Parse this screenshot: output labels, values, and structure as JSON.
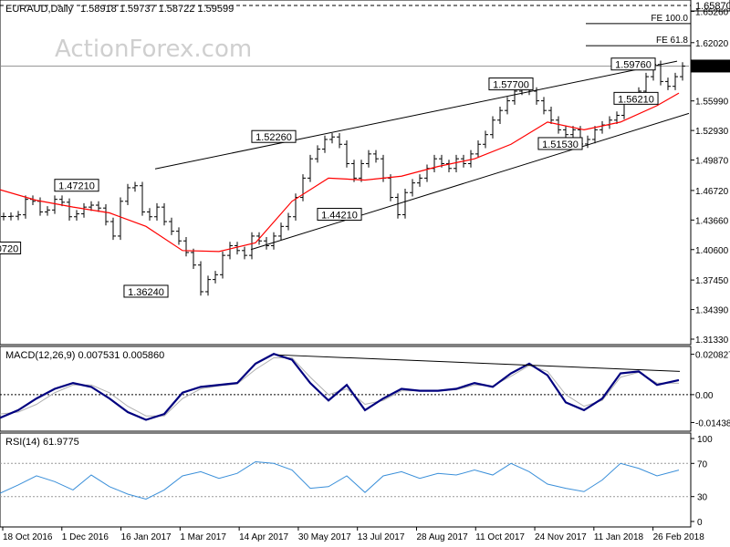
{
  "header": {
    "symbol": "EURAUD,Daily",
    "ohlc": "1.58918 1.59737 1.58722 1.59599",
    "watermark": "ActionForex.com"
  },
  "colors": {
    "price": "#000000",
    "ma": "#ff0000",
    "macd": "#00007f",
    "signal": "#b0b0b0",
    "rsi": "#3a8fd9",
    "current_price_tag": "#000000"
  },
  "chart_data": [
    {
      "type": "line",
      "panel": "price",
      "ylim": [
        1.3133,
        1.6587
      ],
      "y_ticks": [
        "1.65870",
        "1.65260",
        "1.62020",
        "1.59599",
        "1.55990",
        "1.52930",
        "1.49870",
        "1.46720",
        "1.43660",
        "1.40600",
        "1.37450",
        "1.34390",
        "1.31330"
      ],
      "x_ticks": [
        "18 Oct 2016",
        "1 Dec 2016",
        "16 Jan 2017",
        "1 Mar 2017",
        "14 Apr 2017",
        "30 May 2017",
        "13 Jul 2017",
        "28 Aug 2017",
        "11 Oct 2017",
        "24 Nov 2017",
        "11 Jan 2018",
        "26 Feb 2018"
      ],
      "current_price": "1.59599",
      "price_series": {
        "x": [
          0,
          8,
          16,
          24,
          32,
          40,
          48,
          56,
          64,
          72,
          80,
          88,
          96,
          104,
          112,
          120,
          128,
          136,
          144,
          152,
          160,
          168,
          176,
          184,
          192,
          200,
          208,
          216,
          224,
          232,
          240,
          248,
          256,
          264,
          272,
          280,
          288,
          296,
          304,
          312,
          320,
          328,
          336,
          344,
          352,
          360,
          368,
          376,
          384,
          392,
          400,
          408,
          416,
          424,
          432,
          440,
          448,
          456,
          464,
          472,
          480,
          488,
          496,
          504,
          512,
          520,
          528,
          536,
          544,
          552,
          560,
          568,
          576,
          584,
          592,
          600,
          608,
          616,
          624,
          632,
          640,
          648,
          656,
          664,
          672,
          680,
          688,
          696,
          704,
          712,
          720,
          728,
          736,
          744
        ],
        "close": [
          1.4402,
          1.4405,
          1.442,
          1.458,
          1.456,
          1.445,
          1.447,
          1.458,
          1.455,
          1.44,
          1.443,
          1.45,
          1.452,
          1.449,
          1.435,
          1.42,
          1.456,
          1.47,
          1.4721,
          1.445,
          1.44,
          1.45,
          1.435,
          1.425,
          1.415,
          1.403,
          1.39,
          1.3624,
          1.375,
          1.38,
          1.4,
          1.41,
          1.405,
          1.4,
          1.42,
          1.415,
          1.41,
          1.42,
          1.43,
          1.44,
          1.46,
          1.48,
          1.5,
          1.51,
          1.52,
          1.5226,
          1.515,
          1.495,
          1.48,
          1.495,
          1.505,
          1.5,
          1.48,
          1.46,
          1.4421,
          1.465,
          1.475,
          1.48,
          1.49,
          1.5,
          1.495,
          1.49,
          1.5,
          1.495,
          1.505,
          1.515,
          1.525,
          1.54,
          1.55,
          1.56,
          1.57,
          1.577,
          1.57,
          1.56,
          1.55,
          1.54,
          1.53,
          1.525,
          1.53,
          1.5153,
          1.52,
          1.53,
          1.535,
          1.54,
          1.545,
          1.56,
          1.5621,
          1.57,
          1.585,
          1.5976,
          1.58,
          1.575,
          1.585,
          1.596
        ]
      },
      "ma_series": {
        "x": [
          0,
          40,
          80,
          120,
          160,
          200,
          240,
          280,
          320,
          360,
          400,
          440,
          480,
          520,
          560,
          600,
          640,
          680,
          720,
          744
        ],
        "values": [
          1.468,
          1.457,
          1.45,
          1.444,
          1.43,
          1.405,
          1.404,
          1.413,
          1.456,
          1.48,
          1.478,
          1.482,
          1.492,
          1.5,
          1.515,
          1.538,
          1.53,
          1.538,
          1.555,
          1.568
        ]
      },
      "trendlines": [
        {
          "x": [
            170,
            742
          ],
          "y": [
            1.4895,
            1.601
          ]
        },
        {
          "x": [
            275,
            755
          ],
          "y": [
            1.406,
            1.547
          ]
        },
        {
          "x": [
            0,
            755
          ],
          "y": [
            1.596,
            1.596
          ]
        }
      ],
      "fib_levels": [
        {
          "label": "FE 100.0",
          "value": "1.64000",
          "y": 1.64
        },
        {
          "label": "FE 61.8",
          "value": "1.61700",
          "y": 1.617
        }
      ],
      "annotations": [
        {
          "text": "1.47210",
          "x": 84,
          "y": 1.4721
        },
        {
          "text": "0720",
          "x": 8,
          "y": 1.4072
        },
        {
          "text": "1.36240",
          "x": 160,
          "y": 1.3624
        },
        {
          "text": "1.52260",
          "x": 300,
          "y": 1.5226
        },
        {
          "text": "1.44210",
          "x": 372,
          "y": 1.4421
        },
        {
          "text": "1.57700",
          "x": 560,
          "y": 1.577
        },
        {
          "text": "1.51530",
          "x": 614,
          "y": 1.5153
        },
        {
          "text": "1.59760",
          "x": 694,
          "y": 1.5976
        },
        {
          "text": "1.56210",
          "x": 697,
          "y": 1.5621
        }
      ]
    },
    {
      "type": "line",
      "panel": "macd",
      "title": "MACD(12,26,9) 0.007531 0.005860",
      "ylim": [
        -0.017,
        0.023
      ],
      "y_ticks": [
        "0.020827",
        "0.00",
        "-0.014386"
      ],
      "macd_series": {
        "x": [
          0,
          20,
          40,
          60,
          80,
          100,
          120,
          140,
          160,
          180,
          200,
          220,
          240,
          260,
          280,
          300,
          320,
          340,
          360,
          380,
          400,
          420,
          440,
          460,
          480,
          500,
          520,
          540,
          560,
          580,
          600,
          620,
          640,
          660,
          680,
          700,
          720,
          744
        ],
        "values": [
          -0.012,
          -0.008,
          -0.002,
          0.003,
          0.006,
          0.004,
          -0.002,
          -0.009,
          -0.013,
          -0.01,
          0.001,
          0.004,
          0.005,
          0.006,
          0.016,
          0.021,
          0.018,
          0.006,
          -0.003,
          0.005,
          -0.008,
          -0.002,
          0.003,
          0.002,
          0.002,
          0.003,
          0.006,
          0.004,
          0.011,
          0.016,
          0.01,
          -0.004,
          -0.008,
          -0.002,
          0.011,
          0.012,
          0.005,
          0.0075
        ]
      },
      "signal_series": {
        "x": [
          0,
          20,
          40,
          60,
          80,
          100,
          120,
          140,
          160,
          180,
          200,
          220,
          240,
          260,
          280,
          300,
          320,
          340,
          360,
          380,
          400,
          420,
          440,
          460,
          480,
          500,
          520,
          540,
          560,
          580,
          600,
          620,
          640,
          660,
          680,
          700,
          720,
          744
        ],
        "values": [
          -0.01,
          -0.009,
          -0.005,
          0.001,
          0.005,
          0.005,
          0.001,
          -0.006,
          -0.011,
          -0.011,
          -0.002,
          0.003,
          0.0045,
          0.0055,
          0.013,
          0.019,
          0.019,
          0.009,
          0.0,
          0.003,
          -0.005,
          -0.003,
          0.002,
          0.002,
          0.002,
          0.0025,
          0.005,
          0.0045,
          0.0095,
          0.015,
          0.012,
          0.0,
          -0.006,
          -0.003,
          0.009,
          0.0115,
          0.006,
          0.0059
        ]
      },
      "trendline": {
        "x": [
          305,
          745
        ],
        "y": [
          0.0205,
          0.012
        ]
      }
    },
    {
      "type": "line",
      "panel": "rsi",
      "title": "RSI(14) 61.9775",
      "ylim": [
        0,
        100
      ],
      "y_ticks": [
        "100",
        "70",
        "30",
        "0"
      ],
      "reference_levels": [
        70,
        30
      ],
      "rsi_series": {
        "x": [
          0,
          20,
          40,
          60,
          80,
          100,
          120,
          140,
          160,
          180,
          200,
          220,
          240,
          260,
          280,
          300,
          320,
          340,
          360,
          380,
          400,
          420,
          440,
          460,
          480,
          500,
          520,
          540,
          560,
          580,
          600,
          620,
          640,
          660,
          680,
          700,
          720,
          744
        ],
        "values": [
          34,
          44,
          55,
          48,
          38,
          56,
          42,
          33,
          27,
          38,
          55,
          60,
          52,
          58,
          72,
          70,
          62,
          40,
          42,
          55,
          35,
          55,
          60,
          52,
          58,
          56,
          62,
          56,
          70,
          60,
          45,
          40,
          36,
          50,
          70,
          64,
          55,
          62
        ]
      }
    }
  ]
}
